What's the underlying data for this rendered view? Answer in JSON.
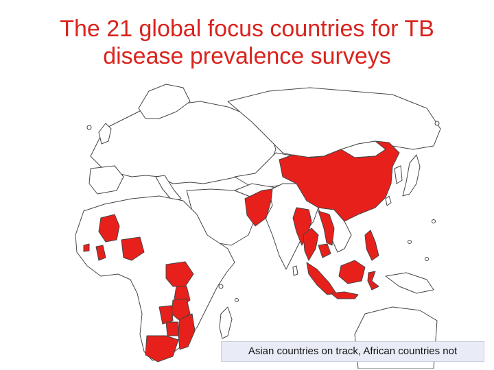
{
  "title": {
    "line1": "The 21 global focus countries for TB",
    "line2": "disease prevalence surveys"
  },
  "caption": "Asian countries on track, African countries not",
  "colors": {
    "title": "#d9231d",
    "focus_country": "#e8201b",
    "other_country": "#ffffff",
    "border": "#444444",
    "caption_background": "#e9ecf6"
  },
  "map": {
    "region": "Africa, Europe and Asia",
    "legend": "none"
  }
}
